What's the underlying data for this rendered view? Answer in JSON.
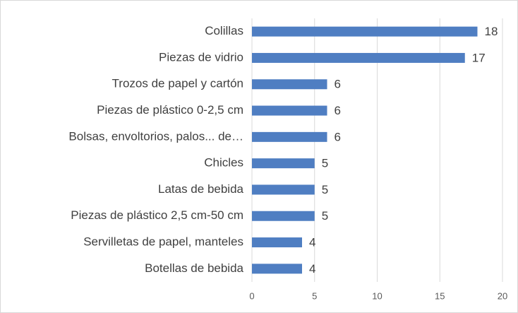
{
  "chart_data": {
    "type": "bar",
    "orientation": "horizontal",
    "categories": [
      "Colillas",
      "Piezas de vidrio",
      "Trozos de papel y cartón",
      "Piezas de plástico 0-2,5 cm",
      "Bolsas, envoltorios, palos... de…",
      "Chicles",
      "Latas de bebida",
      "Piezas de plástico 2,5 cm-50 cm",
      "Servilletas de papel, manteles",
      "Botellas de bebida"
    ],
    "values": [
      18,
      17,
      6,
      6,
      6,
      5,
      5,
      5,
      4,
      4
    ],
    "color": "#4f7ec2",
    "xlim": [
      0,
      20
    ],
    "xticks": [
      0,
      5,
      10,
      15,
      20
    ],
    "grid": true
  }
}
